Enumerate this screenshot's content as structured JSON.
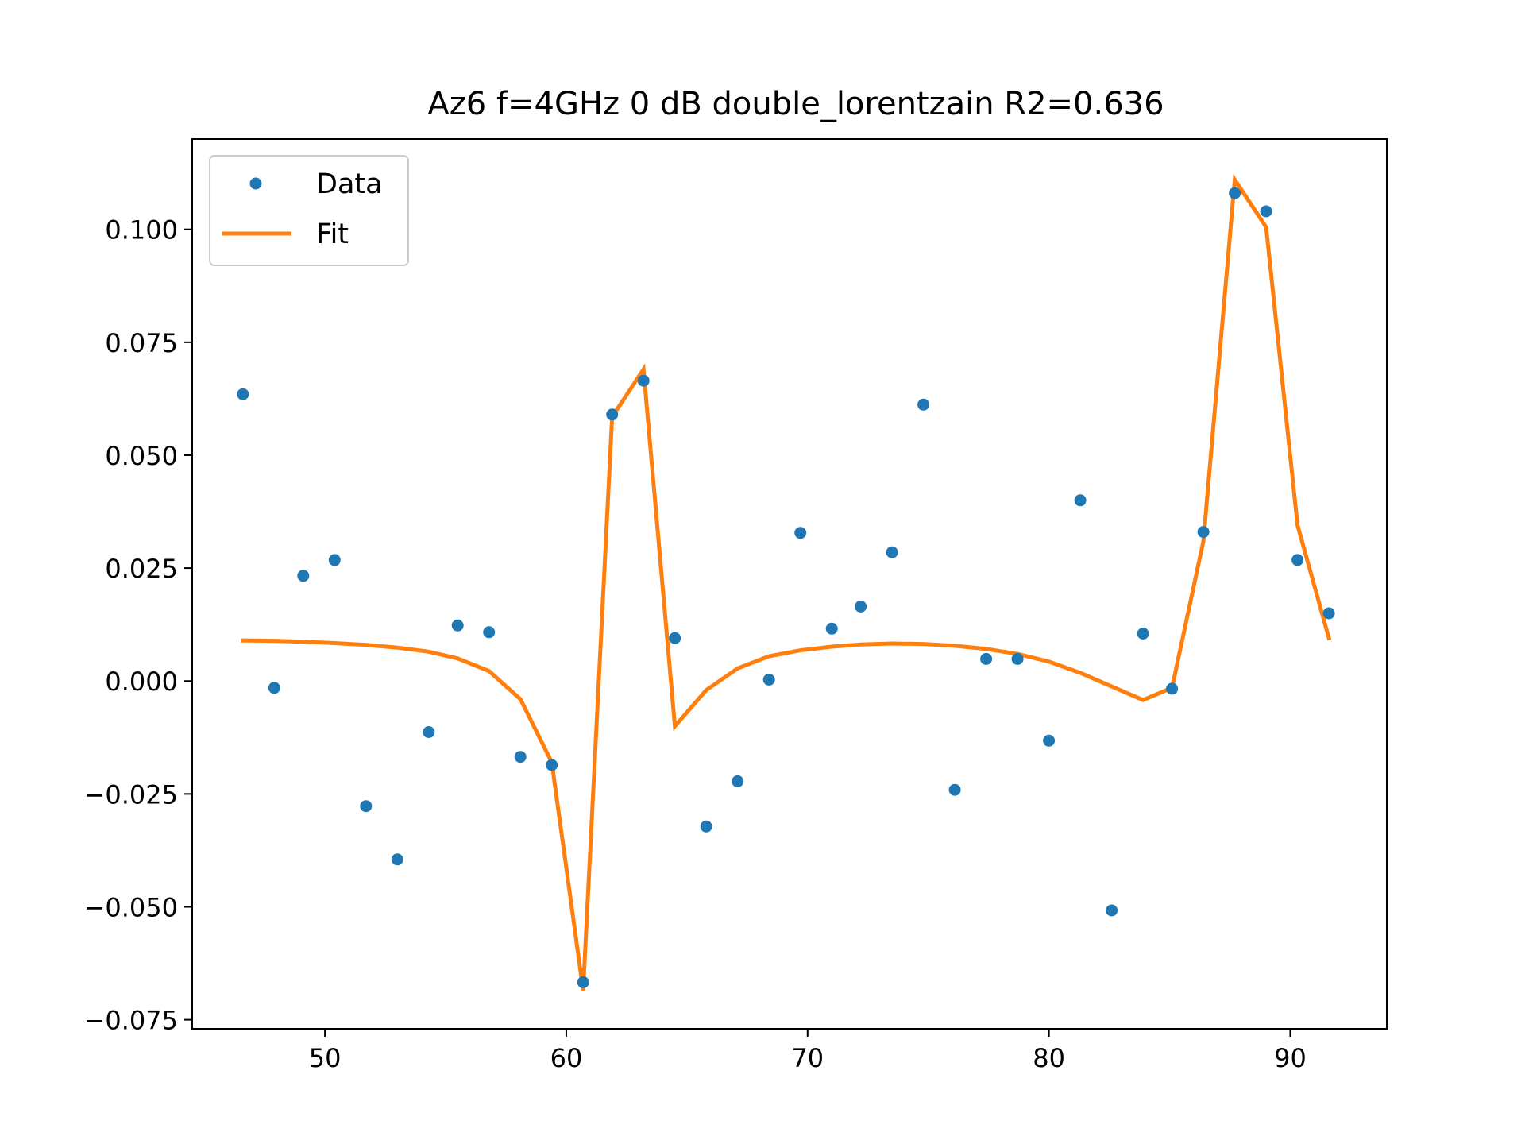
{
  "chart_data": {
    "type": "scatter",
    "title": "Az6 f=4GHz 0 dB double_lorentzain R2=0.636",
    "xlabel": "",
    "ylabel": "",
    "xlim": [
      44.5,
      94.0
    ],
    "ylim": [
      -0.077,
      0.12
    ],
    "x_ticks": [
      50,
      60,
      70,
      80,
      90
    ],
    "x_tick_labels": [
      "50",
      "60",
      "70",
      "80",
      "90"
    ],
    "y_ticks": [
      -0.075,
      -0.05,
      -0.025,
      0.0,
      0.025,
      0.05,
      0.075,
      0.1
    ],
    "y_tick_labels": [
      "−0.075",
      "−0.050",
      "−0.025",
      "0.000",
      "0.025",
      "0.050",
      "0.075",
      "0.100"
    ],
    "grid": false,
    "legend_position": "top-left",
    "series": [
      {
        "name": "Data",
        "kind": "markers",
        "color": "#1f77b4",
        "x": [
          46.6,
          47.9,
          49.1,
          50.4,
          51.7,
          53.0,
          54.3,
          55.5,
          56.8,
          58.1,
          59.4,
          60.7,
          61.9,
          63.2,
          64.5,
          65.8,
          67.1,
          68.4,
          69.7,
          71.0,
          72.2,
          73.5,
          74.8,
          76.1,
          77.4,
          78.7,
          80.0,
          81.3,
          82.6,
          83.9,
          85.1,
          86.4,
          87.7,
          89.0,
          90.3,
          91.6
        ],
        "y": [
          0.0635,
          -0.0015,
          0.0233,
          0.0268,
          -0.0277,
          -0.0395,
          -0.0113,
          0.0123,
          0.0108,
          -0.0168,
          -0.0186,
          -0.0667,
          0.059,
          0.0665,
          0.0095,
          -0.0322,
          -0.0222,
          0.0003,
          0.0328,
          0.0116,
          0.0165,
          0.0285,
          0.0612,
          -0.0241,
          0.0049,
          0.0049,
          -0.0132,
          0.04,
          -0.0508,
          0.0105,
          -0.0017,
          0.033,
          0.108,
          0.104,
          0.0268,
          0.015
        ]
      },
      {
        "name": "Fit",
        "kind": "line",
        "color": "#ff7f0e",
        "x": [
          46.6,
          47.9,
          49.1,
          50.4,
          51.7,
          53.0,
          54.3,
          55.5,
          56.8,
          58.1,
          59.4,
          60.7,
          61.9,
          63.2,
          64.5,
          65.8,
          67.1,
          68.4,
          69.7,
          71.0,
          72.2,
          73.5,
          74.8,
          76.1,
          77.4,
          78.7,
          80.0,
          81.3,
          82.6,
          83.9,
          85.1,
          86.4,
          87.7,
          89.0,
          90.3,
          91.6
        ],
        "y": [
          0.009,
          0.0089,
          0.0087,
          0.0084,
          0.008,
          0.0074,
          0.0065,
          0.005,
          0.0022,
          -0.004,
          -0.018,
          -0.0685,
          0.0585,
          0.069,
          -0.01,
          -0.002,
          0.0028,
          0.0055,
          0.0068,
          0.0076,
          0.0081,
          0.0083,
          0.0082,
          0.0078,
          0.0071,
          0.006,
          0.0043,
          0.0018,
          -0.0012,
          -0.0042,
          -0.0015,
          0.031,
          0.111,
          0.1005,
          0.0345,
          0.0095
        ]
      }
    ]
  }
}
